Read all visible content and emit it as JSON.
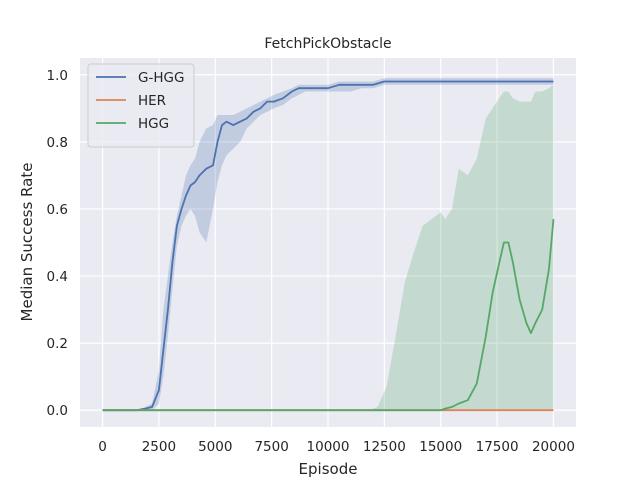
{
  "chart_data": {
    "type": "line",
    "title": "FetchPickObstacle",
    "xlabel": "Episode",
    "ylabel": "Median Success Rate",
    "xlim": [
      -1000,
      21000
    ],
    "ylim": [
      -0.05,
      1.05
    ],
    "xticks": [
      0,
      2500,
      5000,
      7500,
      10000,
      12500,
      15000,
      17500,
      20000
    ],
    "yticks": [
      0.0,
      0.2,
      0.4,
      0.6,
      0.8,
      1.0
    ],
    "ytick_labels": [
      "0.0",
      "0.2",
      "0.4",
      "0.6",
      "0.8",
      "1.0"
    ],
    "grid": true,
    "legend_position": "top-left",
    "series": [
      {
        "name": "G-HGG",
        "color": "#4c72b0",
        "x": [
          0,
          1500,
          1900,
          2200,
          2500,
          2700,
          2900,
          3100,
          3300,
          3500,
          3700,
          3900,
          4100,
          4300,
          4600,
          4900,
          5100,
          5300,
          5500,
          5800,
          6100,
          6400,
          6700,
          7000,
          7300,
          7600,
          8000,
          8400,
          8700,
          9000,
          9500,
          10000,
          10500,
          11000,
          11500,
          12000,
          12500,
          13000,
          13500,
          14000,
          14500,
          15000,
          15500,
          16000,
          16500,
          17000,
          17500,
          18000,
          18500,
          19000,
          19500,
          20000
        ],
        "y": [
          0.0,
          0.0,
          0.005,
          0.01,
          0.06,
          0.18,
          0.3,
          0.44,
          0.55,
          0.6,
          0.64,
          0.67,
          0.68,
          0.7,
          0.72,
          0.73,
          0.8,
          0.85,
          0.86,
          0.85,
          0.86,
          0.87,
          0.89,
          0.9,
          0.92,
          0.92,
          0.93,
          0.95,
          0.96,
          0.96,
          0.96,
          0.96,
          0.97,
          0.97,
          0.97,
          0.97,
          0.98,
          0.98,
          0.98,
          0.98,
          0.98,
          0.98,
          0.98,
          0.98,
          0.98,
          0.98,
          0.98,
          0.98,
          0.98,
          0.98,
          0.98,
          0.98
        ],
        "lower": [
          0.0,
          0.0,
          0.0,
          0.0,
          0.02,
          0.1,
          0.22,
          0.36,
          0.49,
          0.55,
          0.58,
          0.6,
          0.58,
          0.53,
          0.5,
          0.6,
          0.68,
          0.73,
          0.76,
          0.78,
          0.8,
          0.84,
          0.86,
          0.88,
          0.89,
          0.9,
          0.91,
          0.93,
          0.94,
          0.95,
          0.95,
          0.95,
          0.95,
          0.95,
          0.96,
          0.96,
          0.97,
          0.97,
          0.97,
          0.97,
          0.97,
          0.97,
          0.97,
          0.97,
          0.97,
          0.97,
          0.97,
          0.97,
          0.97,
          0.97,
          0.97,
          0.97
        ],
        "upper": [
          0.0,
          0.0,
          0.01,
          0.02,
          0.12,
          0.3,
          0.4,
          0.5,
          0.58,
          0.64,
          0.7,
          0.73,
          0.75,
          0.8,
          0.84,
          0.85,
          0.88,
          0.88,
          0.88,
          0.88,
          0.89,
          0.9,
          0.91,
          0.92,
          0.93,
          0.94,
          0.95,
          0.96,
          0.97,
          0.97,
          0.97,
          0.97,
          0.98,
          0.98,
          0.98,
          0.98,
          0.99,
          0.99,
          0.99,
          0.99,
          0.99,
          0.99,
          0.99,
          0.99,
          0.99,
          0.99,
          0.99,
          0.99,
          0.99,
          0.99,
          0.99,
          0.99
        ]
      },
      {
        "name": "HER",
        "color": "#dd8452",
        "x": [
          0,
          5000,
          10000,
          15000,
          20000
        ],
        "y": [
          0.0,
          0.0,
          0.0,
          0.0,
          0.0
        ]
      },
      {
        "name": "HGG",
        "color": "#55a868",
        "x": [
          0,
          5000,
          11800,
          12200,
          12600,
          13000,
          13400,
          13800,
          14200,
          14600,
          15000,
          15200,
          15500,
          15800,
          16200,
          16600,
          17000,
          17300,
          17600,
          17800,
          18000,
          18200,
          18500,
          18800,
          19000,
          19200,
          19500,
          19800,
          20000
        ],
        "y": [
          0.0,
          0.0,
          0.0,
          0.0,
          0.0,
          0.0,
          0.0,
          0.0,
          0.0,
          0.0,
          0.0,
          0.005,
          0.01,
          0.02,
          0.03,
          0.08,
          0.22,
          0.35,
          0.44,
          0.5,
          0.5,
          0.44,
          0.33,
          0.26,
          0.23,
          0.26,
          0.3,
          0.42,
          0.57
        ],
        "lower": [
          0.0,
          0.0,
          0.0,
          0.0,
          0.0,
          0.0,
          0.0,
          0.0,
          0.0,
          0.0,
          0.0,
          0.0,
          0.0,
          0.0,
          0.0,
          0.0,
          0.0,
          0.0,
          0.0,
          0.0,
          0.0,
          0.0,
          0.0,
          0.0,
          0.0,
          0.0,
          0.0,
          0.0,
          0.0
        ],
        "upper": [
          0.0,
          0.0,
          0.0,
          0.01,
          0.07,
          0.22,
          0.38,
          0.47,
          0.55,
          0.57,
          0.59,
          0.57,
          0.6,
          0.72,
          0.7,
          0.75,
          0.87,
          0.9,
          0.93,
          0.95,
          0.95,
          0.93,
          0.92,
          0.92,
          0.92,
          0.95,
          0.95,
          0.96,
          0.97
        ]
      }
    ]
  }
}
